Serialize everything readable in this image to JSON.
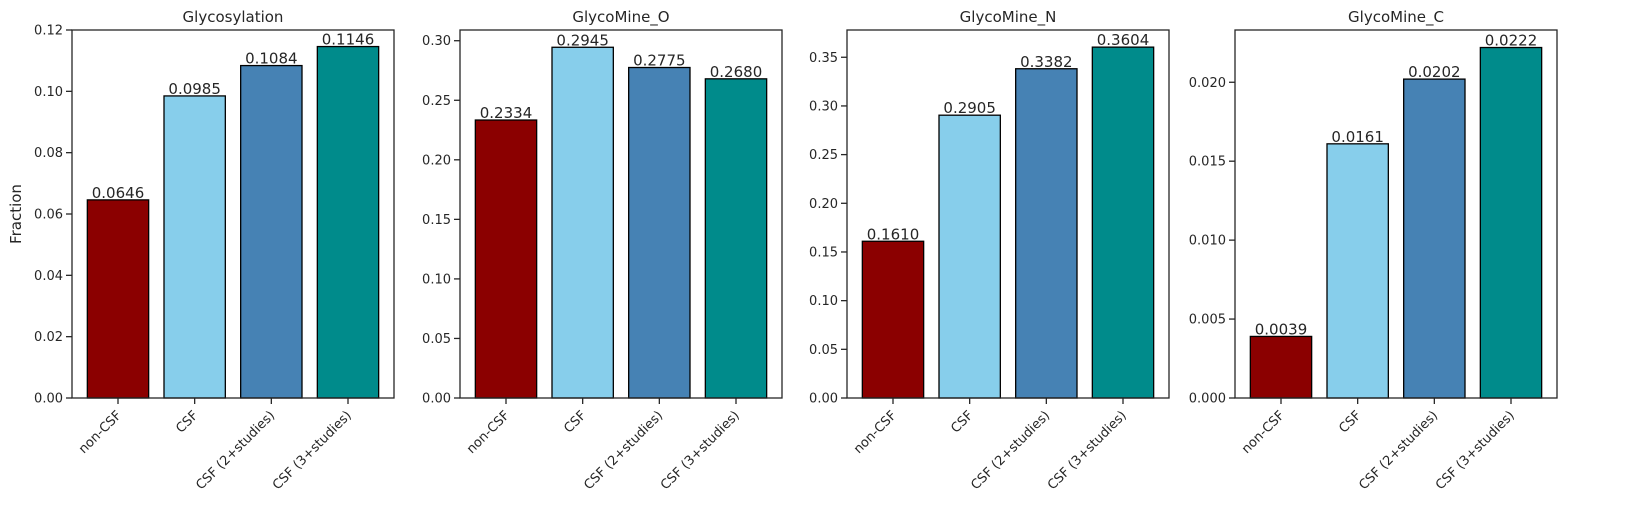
{
  "colors": {
    "non_csf": "#8b0000",
    "csf": "#87ceeb",
    "csf_2plus": "#4682b4",
    "csf_3plus": "#008b8b",
    "bar_edge": "#000000",
    "axis": "#262626"
  },
  "chart_data": [
    {
      "type": "bar",
      "title": "Glycosylation",
      "ylabel": "Fraction",
      "xlabel": "",
      "categories": [
        "non-CSF",
        "CSF",
        "CSF (2+studies)",
        "CSF (3+studies)"
      ],
      "values": [
        0.0646,
        0.0985,
        0.1084,
        0.1146
      ],
      "value_labels": [
        "0.0646",
        "0.0985",
        "0.1084",
        "0.1146"
      ],
      "ylim": [
        0,
        0.12
      ],
      "yticks": [
        0,
        0.02,
        0.04,
        0.06,
        0.08,
        0.1,
        0.12
      ],
      "ytick_labels": [
        "0.00",
        "0.02",
        "0.04",
        "0.06",
        "0.08",
        "0.10",
        "0.12"
      ],
      "grid": false
    },
    {
      "type": "bar",
      "title": "GlycoMine_O",
      "ylabel": "",
      "xlabel": "",
      "categories": [
        "non-CSF",
        "CSF",
        "CSF (2+studies)",
        "CSF (3+studies)"
      ],
      "values": [
        0.2334,
        0.2945,
        0.2775,
        0.268
      ],
      "value_labels": [
        "0.2334",
        "0.2945",
        "0.2775",
        "0.2680"
      ],
      "ylim": [
        0,
        0.309
      ],
      "yticks": [
        0,
        0.05,
        0.1,
        0.15,
        0.2,
        0.25,
        0.3
      ],
      "ytick_labels": [
        "0.00",
        "0.05",
        "0.10",
        "0.15",
        "0.20",
        "0.25",
        "0.30"
      ],
      "grid": false
    },
    {
      "type": "bar",
      "title": "GlycoMine_N",
      "ylabel": "",
      "xlabel": "",
      "categories": [
        "non-CSF",
        "CSF",
        "CSF (2+studies)",
        "CSF (3+studies)"
      ],
      "values": [
        0.161,
        0.2905,
        0.3382,
        0.3604
      ],
      "value_labels": [
        "0.1610",
        "0.2905",
        "0.3382",
        "0.3604"
      ],
      "ylim": [
        0,
        0.378
      ],
      "yticks": [
        0,
        0.05,
        0.1,
        0.15,
        0.2,
        0.25,
        0.3,
        0.35
      ],
      "ytick_labels": [
        "0.00",
        "0.05",
        "0.10",
        "0.15",
        "0.20",
        "0.25",
        "0.30",
        "0.35"
      ],
      "grid": false
    },
    {
      "type": "bar",
      "title": "GlycoMine_C",
      "ylabel": "",
      "xlabel": "",
      "categories": [
        "non-CSF",
        "CSF",
        "CSF (2+studies)",
        "CSF (3+studies)"
      ],
      "values": [
        0.0039,
        0.0161,
        0.0202,
        0.0222
      ],
      "value_labels": [
        "0.0039",
        "0.0161",
        "0.0202",
        "0.0222"
      ],
      "ylim": [
        0,
        0.02331
      ],
      "yticks": [
        0,
        0.005,
        0.01,
        0.015,
        0.02
      ],
      "ytick_labels": [
        "0.000",
        "0.005",
        "0.010",
        "0.015",
        "0.020"
      ],
      "grid": false
    }
  ]
}
